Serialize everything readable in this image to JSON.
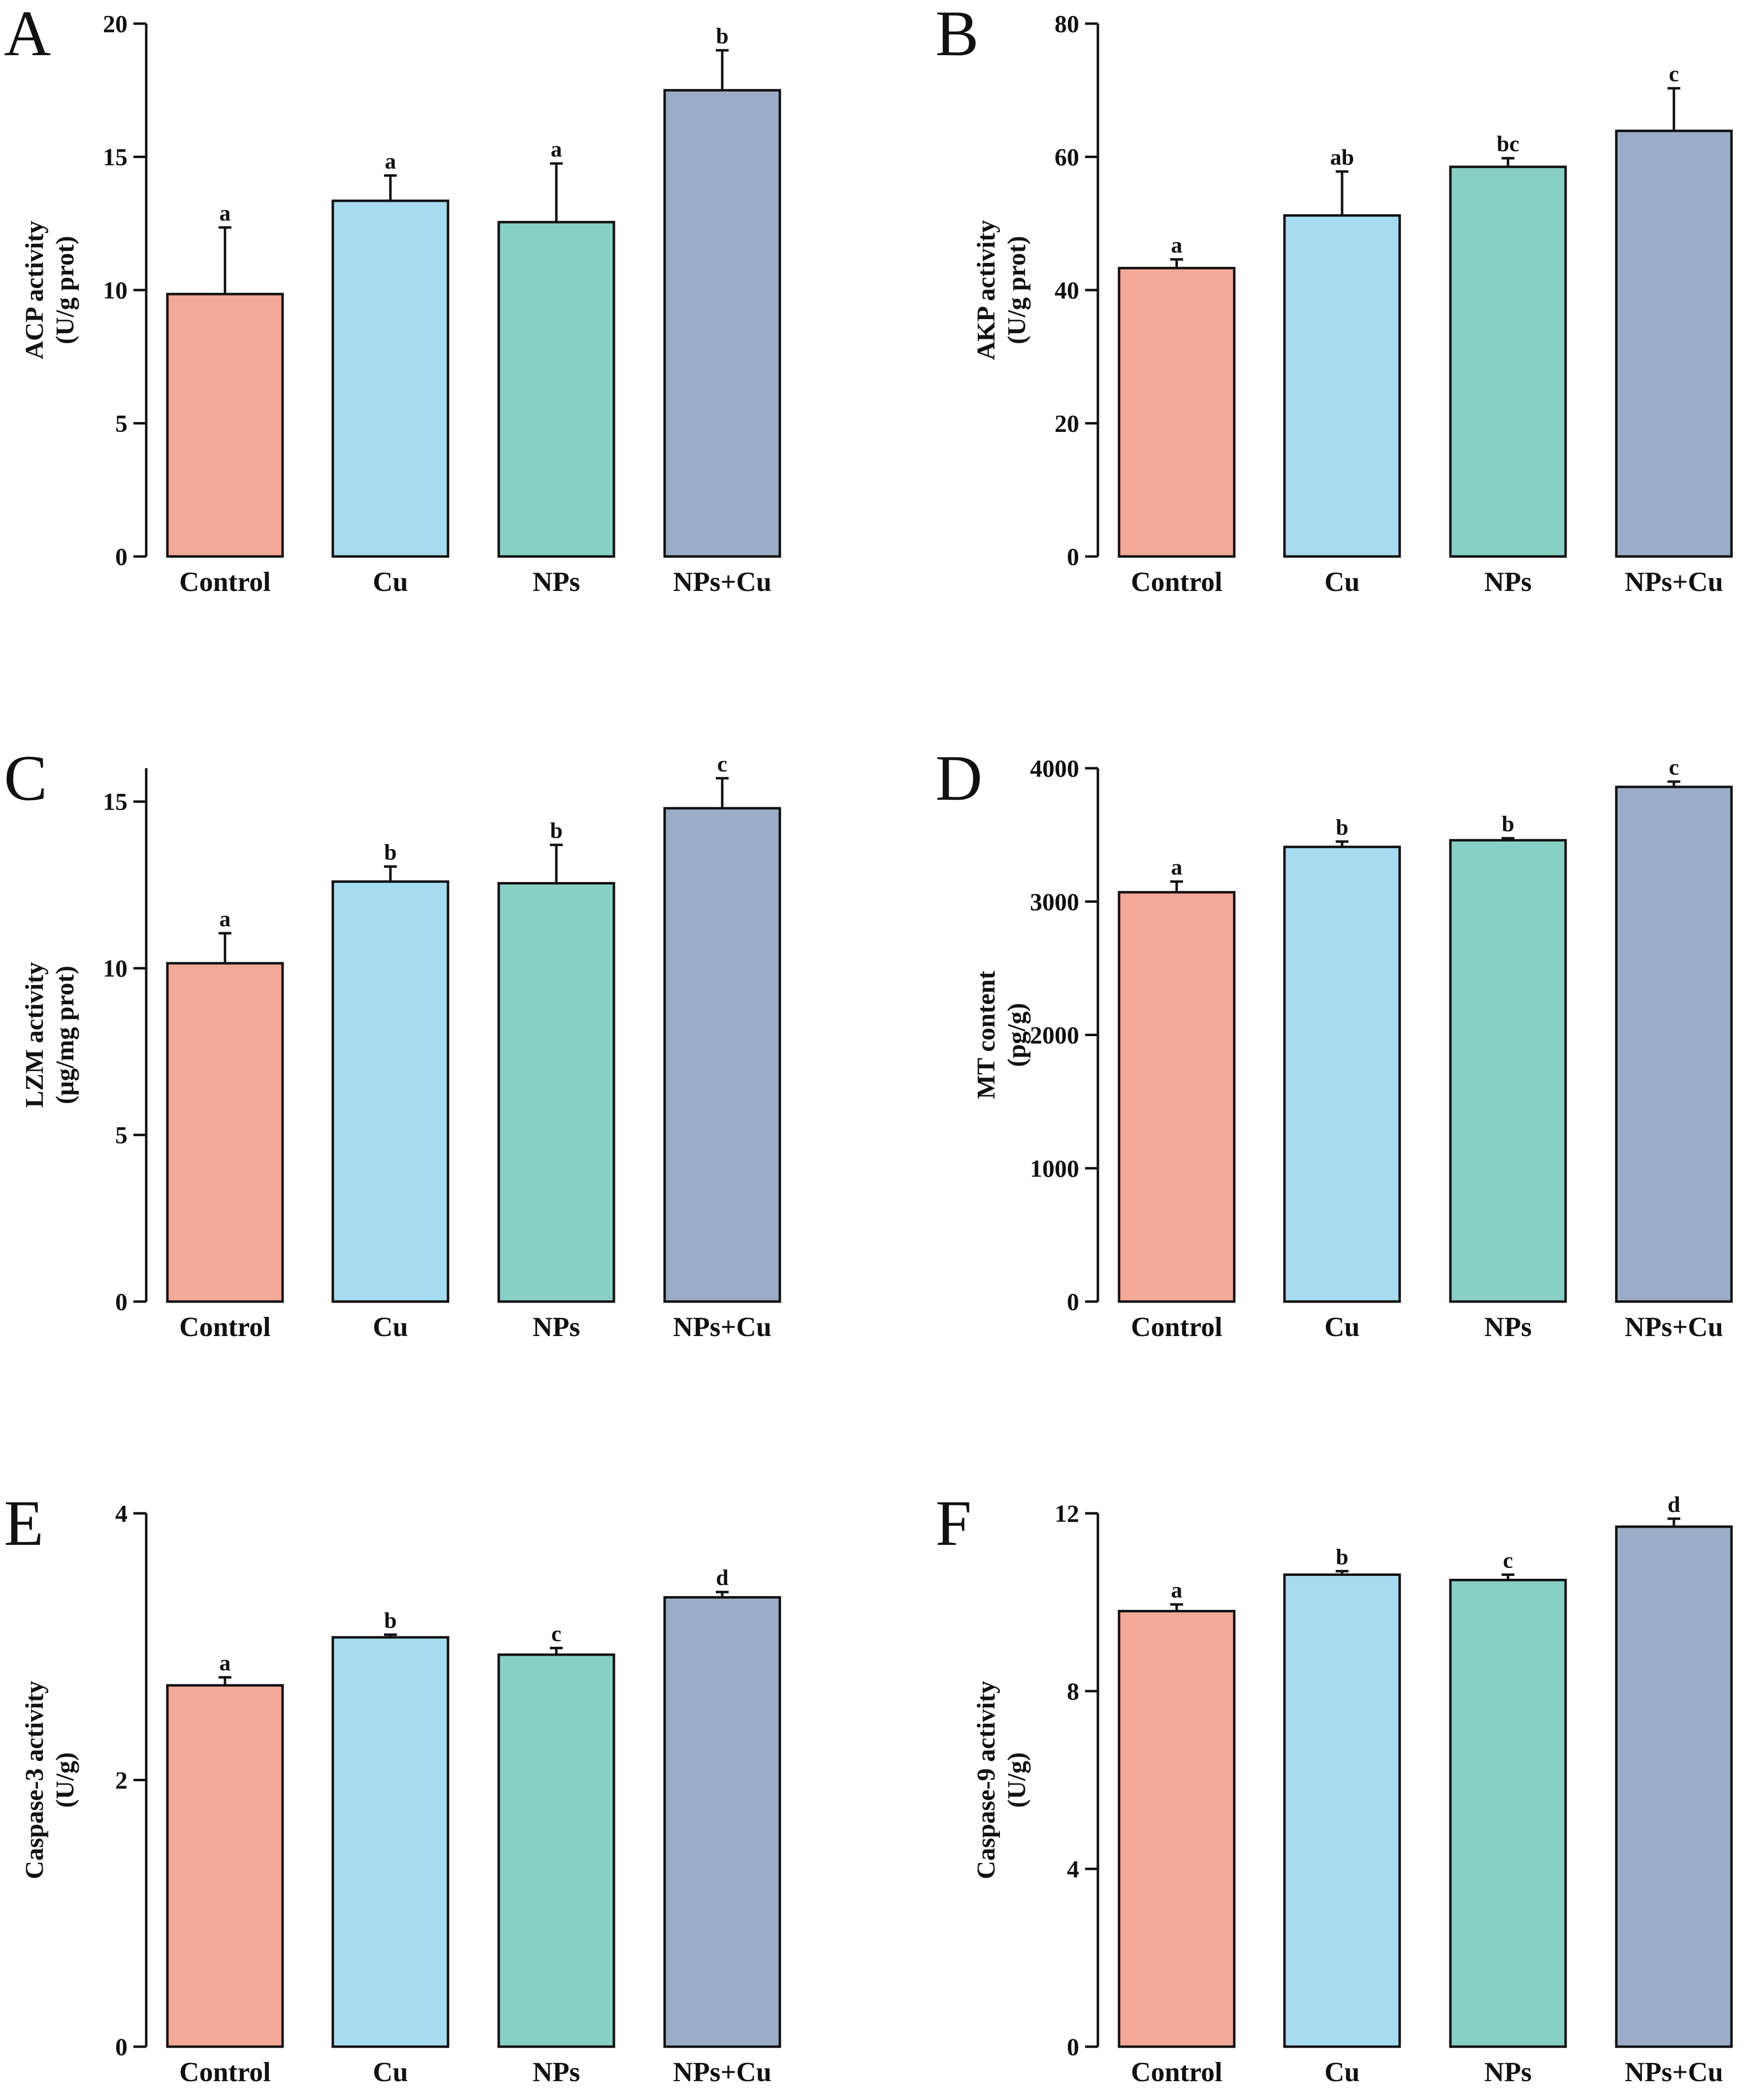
{
  "chart_data": [
    {
      "type": "bar",
      "panel": "A",
      "categories": [
        "Control",
        "Cu",
        "NPs",
        "NPs+Cu"
      ],
      "values": [
        9.85,
        13.35,
        12.55,
        17.5
      ],
      "errors": [
        2.5,
        0.95,
        2.2,
        1.5
      ],
      "significance": [
        "a",
        "a",
        "a",
        "b"
      ],
      "colors": [
        "#f4a898",
        "#a7dcf0",
        "#88d0c4",
        "#9badc6"
      ],
      "ylabel_line1": "ACP activity",
      "ylabel_line2": "(U/g prot)",
      "ylim": [
        0,
        20
      ],
      "yticks": [
        0,
        5,
        10,
        15,
        20
      ],
      "ytick_labels": [
        "0",
        "5",
        "10",
        "15",
        "20"
      ]
    },
    {
      "type": "bar",
      "panel": "B",
      "categories": [
        "Control",
        "Cu",
        "NPs",
        "NPs+Cu"
      ],
      "values": [
        43.3,
        51.2,
        58.5,
        63.9
      ],
      "errors": [
        1.3,
        6.6,
        1.3,
        6.4
      ],
      "significance": [
        "a",
        "ab",
        "bc",
        "c"
      ],
      "colors": [
        "#f4a898",
        "#a7dcf0",
        "#88d0c4",
        "#9badc6"
      ],
      "ylabel_line1": "AKP activity",
      "ylabel_line2": "(U/g prot)",
      "ylim": [
        0,
        80
      ],
      "yticks": [
        0,
        20,
        40,
        60,
        80
      ],
      "ytick_labels": [
        "0",
        "20",
        "40",
        "60",
        "80"
      ]
    },
    {
      "type": "bar",
      "panel": "C",
      "categories": [
        "Control",
        "Cu",
        "NPs",
        "NPs+Cu"
      ],
      "values": [
        10.15,
        12.6,
        12.55,
        14.8
      ],
      "errors": [
        0.9,
        0.45,
        1.15,
        0.9
      ],
      "significance": [
        "a",
        "b",
        "b",
        "c"
      ],
      "colors": [
        "#f4a898",
        "#a7dcf0",
        "#88d0c4",
        "#9badc6"
      ],
      "ylabel_line1": "LZM activity",
      "ylabel_line2": "(μg/mg prot)",
      "ylim": [
        0,
        16
      ],
      "yticks": [
        0,
        5,
        10,
        15
      ],
      "ytick_labels": [
        "0",
        "5",
        "10",
        "15"
      ]
    },
    {
      "type": "bar",
      "panel": "D",
      "categories": [
        "Control",
        "Cu",
        "NPs",
        "NPs+Cu"
      ],
      "values": [
        3070,
        3410,
        3460,
        3860
      ],
      "errors": [
        80,
        40,
        15,
        40
      ],
      "significance": [
        "a",
        "b",
        "b",
        "c"
      ],
      "colors": [
        "#f4a898",
        "#a7dcf0",
        "#88d0c4",
        "#9badc6"
      ],
      "ylabel_line1": "MT content",
      "ylabel_line2": "(pg/g)",
      "ylim": [
        0,
        4000
      ],
      "yticks": [
        0,
        1000,
        2000,
        3000,
        4000
      ],
      "ytick_labels": [
        "0",
        "1000",
        "2000",
        "3000",
        "4000"
      ]
    },
    {
      "type": "bar",
      "panel": "E",
      "categories": [
        "Control",
        "Cu",
        "NPs",
        "NPs+Cu"
      ],
      "values": [
        2.71,
        3.07,
        2.94,
        3.37
      ],
      "errors": [
        0.06,
        0.02,
        0.05,
        0.04
      ],
      "significance": [
        "a",
        "b",
        "c",
        "d"
      ],
      "colors": [
        "#f4a898",
        "#a7dcf0",
        "#88d0c4",
        "#9badc6"
      ],
      "ylabel_line1": "Caspase-3 activity",
      "ylabel_line2": "(U/g)",
      "ylim": [
        0,
        4
      ],
      "yticks": [
        0,
        2,
        4
      ],
      "ytick_labels": [
        "0",
        "2",
        "4"
      ]
    },
    {
      "type": "bar",
      "panel": "F",
      "categories": [
        "Control",
        "Cu",
        "NPs",
        "NPs+Cu"
      ],
      "values": [
        9.8,
        10.62,
        10.5,
        11.7
      ],
      "errors": [
        0.15,
        0.08,
        0.12,
        0.18
      ],
      "significance": [
        "a",
        "b",
        "c",
        "d"
      ],
      "colors": [
        "#f4a898",
        "#a7dcf0",
        "#88d0c4",
        "#9badc6"
      ],
      "ylabel_line1": "Caspase-9 activity",
      "ylabel_line2": "(U/g)",
      "ylim": [
        0,
        12
      ],
      "yticks": [
        0,
        4,
        8,
        12
      ],
      "ytick_labels": [
        "0",
        "4",
        "8",
        "12"
      ]
    }
  ]
}
